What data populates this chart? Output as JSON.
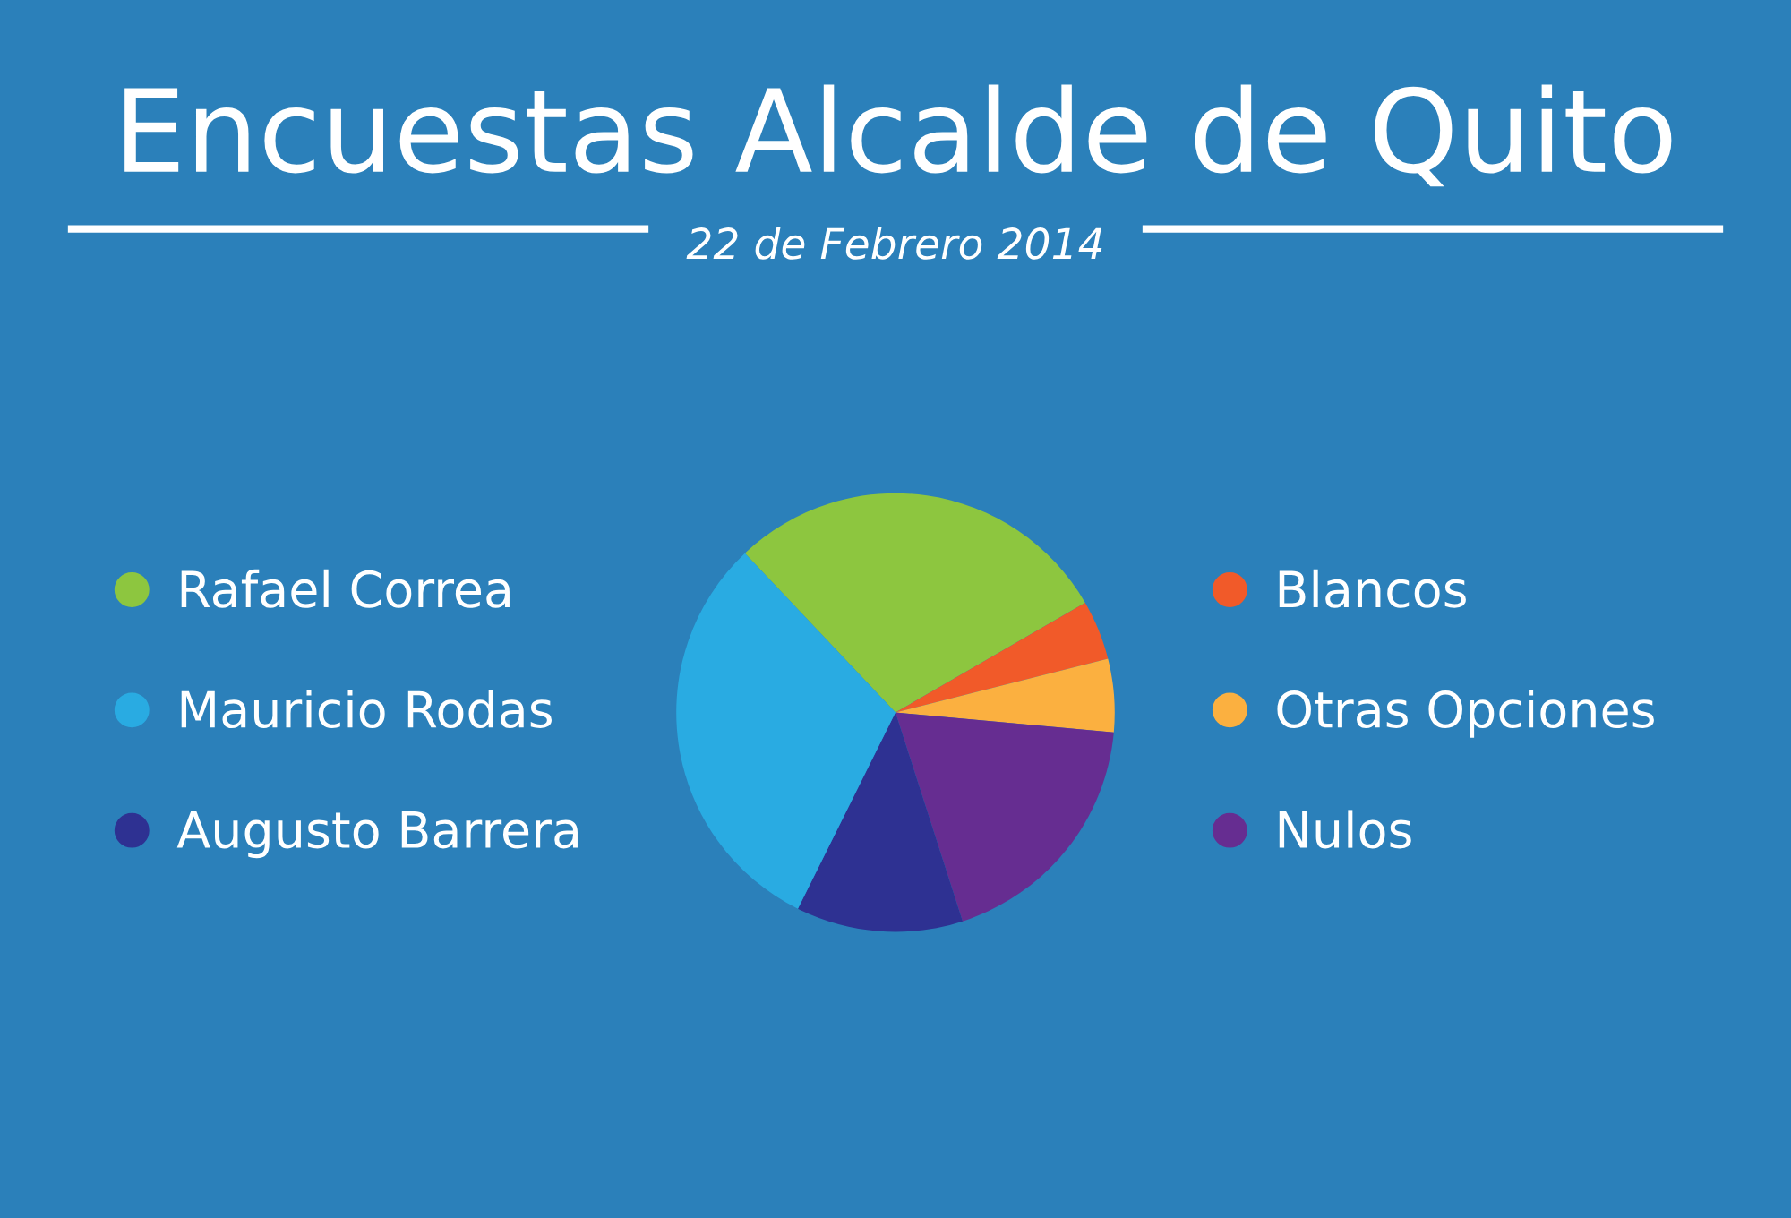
{
  "chart_data": {
    "type": "pie",
    "title": "Encuestas Alcalde de Quito",
    "subtitle": "22 de Febrero 2014",
    "categories": [
      "Rafael Correa",
      "Blancos",
      "Otras Opciones",
      "Nulos",
      "Augusto Barrera",
      "Mauricio Rodas"
    ],
    "values": [
      28.7,
      4.4,
      5.4,
      18.6,
      12.3,
      30.6
    ],
    "colors": [
      "#8dc63f",
      "#f15a29",
      "#fbb040",
      "#662d91",
      "#2e3192",
      "#29abe2"
    ],
    "legend": "left and right"
  }
}
